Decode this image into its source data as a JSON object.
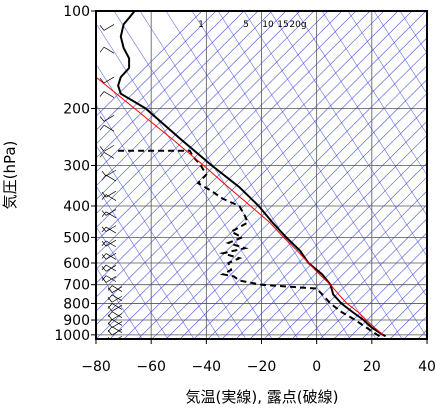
{
  "chart_data": {
    "type": "line",
    "title": "",
    "xlabel": "気温(実線), 露点(破線)",
    "ylabel": "気圧(hPa)",
    "xlim": [
      -80,
      40
    ],
    "ylim": [
      1030,
      100
    ],
    "y_scale": "log",
    "grid": true,
    "x_ticks": [
      -80,
      -60,
      -40,
      -20,
      0,
      20,
      40
    ],
    "y_ticks": [
      100,
      200,
      300,
      400,
      500,
      600,
      700,
      800,
      900,
      1000
    ],
    "mixing_ratio_labels": [
      "1",
      "5",
      "10",
      "15",
      "20g"
    ],
    "series": [
      {
        "name": "",
        "style": "solid",
        "color": "#000000",
        "points": [
          [
            100,
            -66
          ],
          [
            105,
            -68
          ],
          [
            110,
            -70
          ],
          [
            120,
            -71
          ],
          [
            130,
            -70
          ],
          [
            140,
            -68
          ],
          [
            150,
            -68
          ],
          [
            160,
            -71
          ],
          [
            170,
            -72
          ],
          [
            180,
            -71
          ],
          [
            200,
            -62
          ],
          [
            250,
            -49
          ],
          [
            300,
            -38
          ],
          [
            350,
            -28
          ],
          [
            400,
            -21
          ],
          [
            450,
            -16
          ],
          [
            500,
            -11
          ],
          [
            550,
            -6
          ],
          [
            600,
            -3
          ],
          [
            650,
            2
          ],
          [
            700,
            5
          ],
          [
            750,
            6
          ],
          [
            800,
            9
          ],
          [
            850,
            13
          ],
          [
            900,
            17
          ],
          [
            950,
            20
          ],
          [
            1000,
            24
          ],
          [
            1010,
            25
          ]
        ]
      },
      {
        "name": "",
        "style": "dashed",
        "color": "#000000",
        "points": [
          [
            270,
            -72
          ],
          [
            270,
            -46
          ],
          [
            280,
            -45
          ],
          [
            300,
            -42
          ],
          [
            320,
            -40
          ],
          [
            340,
            -43
          ],
          [
            360,
            -38
          ],
          [
            380,
            -34
          ],
          [
            400,
            -28
          ],
          [
            430,
            -26
          ],
          [
            450,
            -25
          ],
          [
            470,
            -29
          ],
          [
            480,
            -31
          ],
          [
            500,
            -27
          ],
          [
            520,
            -32
          ],
          [
            540,
            -26
          ],
          [
            560,
            -34
          ],
          [
            580,
            -28
          ],
          [
            600,
            -32
          ],
          [
            630,
            -31
          ],
          [
            650,
            -34
          ],
          [
            660,
            -30
          ],
          [
            680,
            -28
          ],
          [
            700,
            -20
          ],
          [
            710,
            -10
          ],
          [
            720,
            0
          ],
          [
            750,
            2
          ],
          [
            800,
            5
          ],
          [
            850,
            9
          ],
          [
            900,
            14
          ],
          [
            950,
            18
          ],
          [
            1000,
            22
          ],
          [
            1010,
            23
          ]
        ]
      },
      {
        "name": "",
        "style": "solid",
        "color": "#ff0000",
        "points": [
          [
            160,
            -80
          ],
          [
            200,
            -66
          ],
          [
            250,
            -52
          ],
          [
            300,
            -41
          ],
          [
            350,
            -32
          ],
          [
            400,
            -24
          ],
          [
            450,
            -17
          ],
          [
            500,
            -12
          ],
          [
            550,
            -7
          ],
          [
            600,
            -3
          ],
          [
            650,
            1
          ],
          [
            700,
            5
          ],
          [
            750,
            8
          ],
          [
            800,
            11
          ],
          [
            850,
            15
          ],
          [
            900,
            18
          ],
          [
            950,
            21
          ],
          [
            1000,
            24
          ]
        ]
      }
    ],
    "wind_barbs": true
  }
}
